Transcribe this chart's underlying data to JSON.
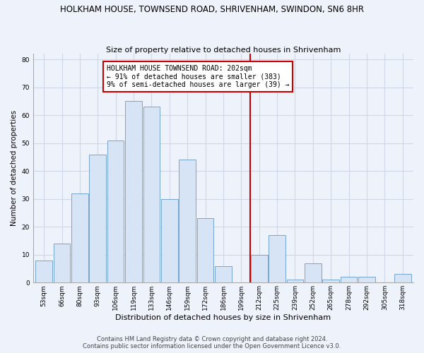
{
  "title": "HOLKHAM HOUSE, TOWNSEND ROAD, SHRIVENHAM, SWINDON, SN6 8HR",
  "subtitle": "Size of property relative to detached houses in Shrivenham",
  "xlabel": "Distribution of detached houses by size in Shrivenham",
  "ylabel": "Number of detached properties",
  "bar_labels": [
    "53sqm",
    "66sqm",
    "80sqm",
    "93sqm",
    "106sqm",
    "119sqm",
    "133sqm",
    "146sqm",
    "159sqm",
    "172sqm",
    "186sqm",
    "199sqm",
    "212sqm",
    "225sqm",
    "239sqm",
    "252sqm",
    "265sqm",
    "278sqm",
    "292sqm",
    "305sqm",
    "318sqm"
  ],
  "bar_values": [
    8,
    14,
    32,
    46,
    51,
    65,
    63,
    30,
    44,
    23,
    6,
    0,
    10,
    17,
    1,
    7,
    1,
    2,
    2,
    0,
    3
  ],
  "bar_color": "#d6e4f5",
  "bar_edge_color": "#6699cc",
  "vline_color": "#cc0000",
  "annotation_text": "HOLKHAM HOUSE TOWNSEND ROAD: 202sqm\n← 91% of detached houses are smaller (383)\n9% of semi-detached houses are larger (39) →",
  "annotation_box_color": "#ffffff",
  "annotation_box_edge": "#cc0000",
  "ylim": [
    0,
    82
  ],
  "yticks": [
    0,
    10,
    20,
    30,
    40,
    50,
    60,
    70,
    80
  ],
  "footer_line1": "Contains HM Land Registry data © Crown copyright and database right 2024.",
  "footer_line2": "Contains public sector information licensed under the Open Government Licence v3.0.",
  "bg_color": "#eef2fa",
  "grid_color": "#d0d8e8",
  "title_fontsize": 8.5,
  "subtitle_fontsize": 8,
  "ylabel_fontsize": 7.5,
  "xlabel_fontsize": 8,
  "tick_fontsize": 6.5,
  "annot_fontsize": 7,
  "footer_fontsize": 6
}
